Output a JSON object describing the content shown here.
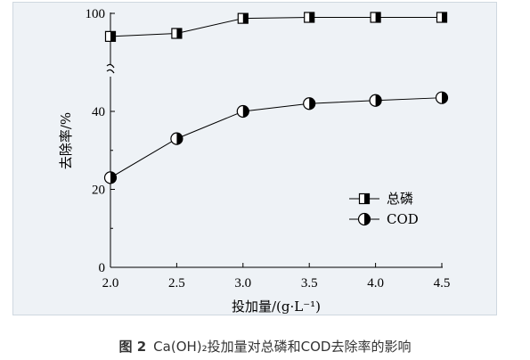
{
  "caption": {
    "figure_no": "图 2",
    "text": "Ca(OH)₂投加量对总磷和COD去除率的影响"
  },
  "chart_data": {
    "type": "line",
    "title": "",
    "xlabel": "投加量/(g·L⁻¹)",
    "ylabel": "去除率/%",
    "x": [
      2.0,
      2.5,
      3.0,
      3.5,
      4.0,
      4.5
    ],
    "x_tick_labels": [
      "2.0",
      "2.5",
      "3.0",
      "3.5",
      "4.0",
      "4.5"
    ],
    "xlim": [
      2.0,
      4.5
    ],
    "y_upper_panel": {
      "ylim": [
        80,
        100
      ],
      "tick_labels": [
        "100"
      ]
    },
    "y_lower_panel": {
      "ylim": [
        0,
        48
      ],
      "tick_labels": [
        "0",
        "20",
        "40"
      ]
    },
    "axis_break": true,
    "grid": false,
    "legend_position": "lower-right",
    "series": [
      {
        "name": "总磷",
        "marker": "half-filled-square",
        "panel": "upper",
        "values": [
          88.5,
          90.0,
          97.5,
          98.0,
          98.0,
          98.0
        ]
      },
      {
        "name": "COD",
        "marker": "half-filled-circle",
        "panel": "lower",
        "values": [
          23.0,
          33.0,
          40.0,
          42.0,
          42.8,
          43.5
        ]
      }
    ]
  }
}
